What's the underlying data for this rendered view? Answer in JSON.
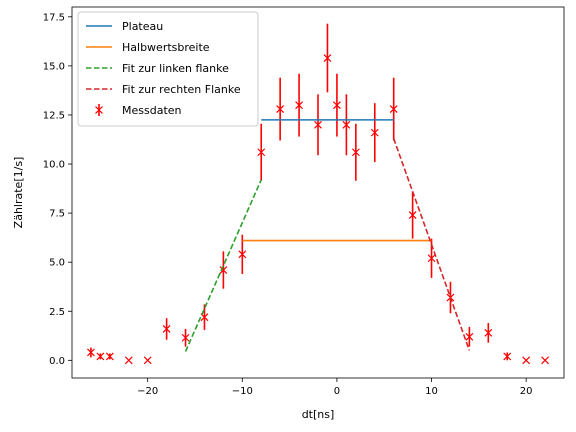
{
  "chart_data": {
    "type": "scatter",
    "xlabel": "dt[ns]",
    "ylabel": "Zählrate[1/s]",
    "xlim": [
      -28,
      24
    ],
    "ylim": [
      -0.9,
      18.0
    ],
    "xticks": [
      -20,
      -10,
      0,
      10,
      20
    ],
    "yticks": [
      0.0,
      2.5,
      5.0,
      7.5,
      10.0,
      12.5,
      15.0,
      17.5
    ],
    "ytick_labels": [
      "0.0",
      "2.5",
      "5.0",
      "7.5",
      "10.0",
      "12.5",
      "15.0",
      "17.5"
    ],
    "grid": false,
    "legend": {
      "placement": "top-left",
      "entries": [
        "Plateau",
        "Halbwertsbreite",
        "Fit zur linken flanke",
        "Fit zur rechten Flanke",
        "Messdaten"
      ]
    },
    "colors": {
      "plateau": "#1f77b4",
      "halbwertsbreite": "#ff7f0e",
      "left_fit": "#2ca02c",
      "right_fit": "#d62728",
      "data": "#ff0000"
    },
    "series": [
      {
        "name": "Plateau",
        "kind": "line",
        "style": "solid",
        "x": [
          -8,
          6
        ],
        "y": [
          12.25,
          12.25
        ]
      },
      {
        "name": "Halbwertsbreite",
        "kind": "line",
        "style": "solid",
        "x": [
          -10,
          10
        ],
        "y": [
          6.1,
          6.1
        ]
      },
      {
        "name": "Fit zur linken flanke",
        "kind": "line",
        "style": "dashed",
        "x": [
          -16,
          -8
        ],
        "y": [
          0.45,
          9.2
        ]
      },
      {
        "name": "Fit zur rechten Flanke",
        "kind": "line",
        "style": "dashed",
        "x": [
          6,
          14
        ],
        "y": [
          11.3,
          0.5
        ]
      },
      {
        "name": "Messdaten",
        "kind": "errorbar",
        "points": [
          {
            "x": -26,
            "y": 0.4,
            "err": 0.25
          },
          {
            "x": -25,
            "y": 0.2,
            "err": 0.15
          },
          {
            "x": -24,
            "y": 0.2,
            "err": 0.15
          },
          {
            "x": -22,
            "y": 0.0,
            "err": 0
          },
          {
            "x": -20,
            "y": 0.0,
            "err": 0
          },
          {
            "x": -18,
            "y": 1.6,
            "err": 0.55
          },
          {
            "x": -16,
            "y": 1.15,
            "err": 0.45
          },
          {
            "x": -14,
            "y": 2.2,
            "err": 0.65
          },
          {
            "x": -12,
            "y": 4.6,
            "err": 0.95
          },
          {
            "x": -10,
            "y": 5.4,
            "err": 1.0
          },
          {
            "x": -8,
            "y": 10.6,
            "err": 1.45
          },
          {
            "x": -6,
            "y": 12.8,
            "err": 1.6
          },
          {
            "x": -4,
            "y": 13.0,
            "err": 1.6
          },
          {
            "x": -2,
            "y": 12.0,
            "err": 1.55
          },
          {
            "x": -1,
            "y": 15.4,
            "err": 1.75
          },
          {
            "x": 0,
            "y": 13.0,
            "err": 1.6
          },
          {
            "x": 1,
            "y": 12.0,
            "err": 1.55
          },
          {
            "x": 2,
            "y": 10.6,
            "err": 1.45
          },
          {
            "x": 4,
            "y": 11.6,
            "err": 1.5
          },
          {
            "x": 6,
            "y": 12.8,
            "err": 1.6
          },
          {
            "x": 8,
            "y": 7.4,
            "err": 1.2
          },
          {
            "x": 10,
            "y": 5.2,
            "err": 1.0
          },
          {
            "x": 12,
            "y": 3.2,
            "err": 0.8
          },
          {
            "x": 14,
            "y": 1.2,
            "err": 0.5
          },
          {
            "x": 16,
            "y": 1.4,
            "err": 0.5
          },
          {
            "x": 18,
            "y": 0.2,
            "err": 0.2
          },
          {
            "x": 20,
            "y": 0.0,
            "err": 0
          },
          {
            "x": 22,
            "y": 0.0,
            "err": 0
          }
        ]
      }
    ]
  }
}
